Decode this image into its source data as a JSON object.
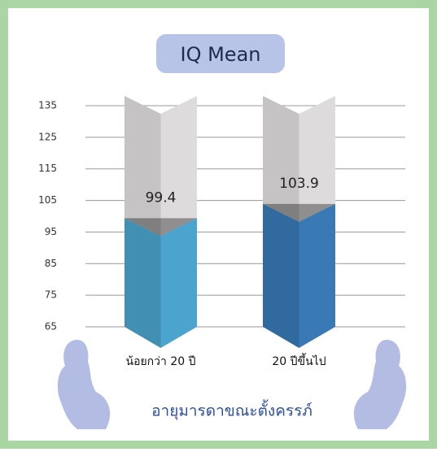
{
  "chart_data": {
    "type": "bar",
    "title": "IQ Mean",
    "categories": [
      "น้อยกว่า 20 ปี",
      "20 ปีขึ้นไป"
    ],
    "values": [
      99.4,
      103.9
    ],
    "colors": [
      "#4aa4cd",
      "#3879b6"
    ],
    "xlabel": "อายุมารดาขณะตั้งครรภ์",
    "ylim": [
      65,
      135
    ],
    "yticks": [
      65,
      75,
      85,
      95,
      105,
      115,
      125,
      135
    ],
    "grid": true
  }
}
